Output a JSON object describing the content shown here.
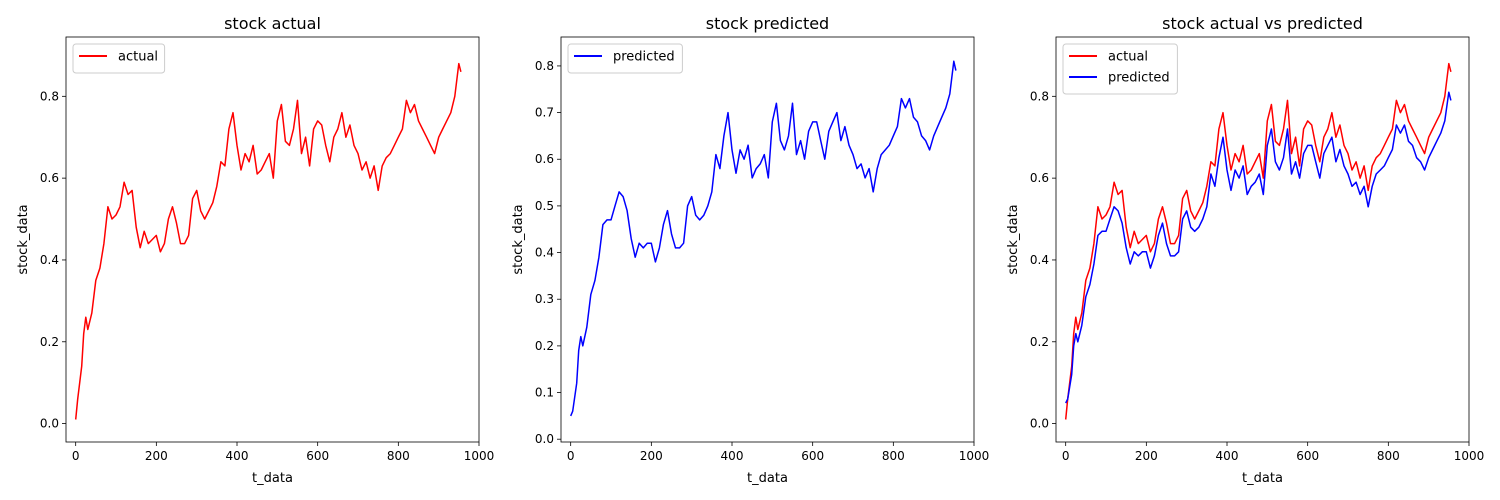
{
  "colors": {
    "actual": "#ff0000",
    "predicted": "#0000ff"
  },
  "chart_data": [
    {
      "type": "line",
      "title": "stock actual",
      "xlabel": "t_data",
      "ylabel": "stock_data",
      "xlim": [
        -24,
        1000
      ],
      "ylim": [
        -0.045,
        0.945
      ],
      "xticks": [
        0,
        200,
        400,
        600,
        800,
        1000
      ],
      "xtick_labels": [
        "0",
        "200",
        "400",
        "600",
        "800",
        "1000"
      ],
      "yticks": [
        0.0,
        0.2,
        0.4,
        0.6,
        0.8
      ],
      "ytick_labels": [
        "0.0",
        "0.2",
        "0.4",
        "0.6",
        "0.8"
      ],
      "grid": false,
      "legend": "upper-left",
      "series": [
        {
          "name": "actual",
          "color": "red",
          "x": [
            0,
            5,
            10,
            15,
            20,
            25,
            30,
            40,
            50,
            60,
            70,
            80,
            90,
            100,
            110,
            120,
            130,
            140,
            150,
            160,
            170,
            180,
            190,
            200,
            210,
            220,
            230,
            240,
            250,
            260,
            270,
            280,
            290,
            300,
            310,
            320,
            330,
            340,
            350,
            360,
            370,
            380,
            390,
            400,
            410,
            420,
            430,
            440,
            450,
            460,
            470,
            480,
            490,
            500,
            510,
            520,
            530,
            540,
            550,
            560,
            570,
            580,
            590,
            600,
            610,
            620,
            630,
            640,
            650,
            660,
            670,
            680,
            690,
            700,
            710,
            720,
            730,
            740,
            750,
            760,
            770,
            780,
            790,
            800,
            810,
            820,
            830,
            840,
            850,
            860,
            870,
            880,
            890,
            900,
            910,
            920,
            930,
            940,
            950,
            955
          ],
          "y": [
            0.01,
            0.06,
            0.1,
            0.14,
            0.22,
            0.26,
            0.23,
            0.27,
            0.35,
            0.38,
            0.44,
            0.53,
            0.5,
            0.51,
            0.53,
            0.59,
            0.56,
            0.57,
            0.48,
            0.43,
            0.47,
            0.44,
            0.45,
            0.46,
            0.42,
            0.44,
            0.5,
            0.53,
            0.49,
            0.44,
            0.44,
            0.46,
            0.55,
            0.57,
            0.52,
            0.5,
            0.52,
            0.54,
            0.58,
            0.64,
            0.63,
            0.72,
            0.76,
            0.68,
            0.62,
            0.66,
            0.64,
            0.68,
            0.61,
            0.62,
            0.64,
            0.66,
            0.6,
            0.74,
            0.78,
            0.69,
            0.68,
            0.72,
            0.79,
            0.66,
            0.7,
            0.63,
            0.72,
            0.74,
            0.73,
            0.68,
            0.64,
            0.7,
            0.72,
            0.76,
            0.7,
            0.73,
            0.68,
            0.66,
            0.62,
            0.64,
            0.6,
            0.63,
            0.57,
            0.63,
            0.65,
            0.66,
            0.68,
            0.7,
            0.72,
            0.79,
            0.76,
            0.78,
            0.74,
            0.72,
            0.7,
            0.68,
            0.66,
            0.7,
            0.72,
            0.74,
            0.76,
            0.8,
            0.88,
            0.86
          ]
        }
      ]
    },
    {
      "type": "line",
      "title": "stock predicted",
      "xlabel": "t_data",
      "ylabel": "stock_data",
      "xlim": [
        -24,
        1000
      ],
      "ylim": [
        -0.006,
        0.862
      ],
      "xticks": [
        0,
        200,
        400,
        600,
        800,
        1000
      ],
      "xtick_labels": [
        "0",
        "200",
        "400",
        "600",
        "800",
        "1000"
      ],
      "yticks": [
        0.0,
        0.1,
        0.2,
        0.3,
        0.4,
        0.5,
        0.6,
        0.7,
        0.8
      ],
      "ytick_labels": [
        "0.0",
        "0.1",
        "0.2",
        "0.3",
        "0.4",
        "0.5",
        "0.6",
        "0.7",
        "0.8"
      ],
      "grid": false,
      "legend": "upper-left",
      "series": [
        {
          "name": "predicted",
          "color": "blue",
          "x": [
            0,
            5,
            10,
            15,
            20,
            25,
            30,
            40,
            50,
            60,
            70,
            80,
            90,
            100,
            110,
            120,
            130,
            140,
            150,
            160,
            170,
            180,
            190,
            200,
            210,
            220,
            230,
            240,
            250,
            260,
            270,
            280,
            290,
            300,
            310,
            320,
            330,
            340,
            350,
            360,
            370,
            380,
            390,
            400,
            410,
            420,
            430,
            440,
            450,
            460,
            470,
            480,
            490,
            500,
            510,
            520,
            530,
            540,
            550,
            560,
            570,
            580,
            590,
            600,
            610,
            620,
            630,
            640,
            650,
            660,
            670,
            680,
            690,
            700,
            710,
            720,
            730,
            740,
            750,
            760,
            770,
            780,
            790,
            800,
            810,
            820,
            830,
            840,
            850,
            860,
            870,
            880,
            890,
            900,
            910,
            920,
            930,
            940,
            950,
            955
          ],
          "y": [
            0.05,
            0.06,
            0.09,
            0.12,
            0.19,
            0.22,
            0.2,
            0.24,
            0.31,
            0.34,
            0.39,
            0.46,
            0.47,
            0.47,
            0.5,
            0.53,
            0.52,
            0.49,
            0.43,
            0.39,
            0.42,
            0.41,
            0.42,
            0.42,
            0.38,
            0.41,
            0.46,
            0.49,
            0.44,
            0.41,
            0.41,
            0.42,
            0.5,
            0.52,
            0.48,
            0.47,
            0.48,
            0.5,
            0.53,
            0.61,
            0.58,
            0.65,
            0.7,
            0.62,
            0.57,
            0.62,
            0.6,
            0.63,
            0.56,
            0.58,
            0.59,
            0.61,
            0.56,
            0.68,
            0.72,
            0.64,
            0.62,
            0.65,
            0.72,
            0.61,
            0.64,
            0.6,
            0.66,
            0.68,
            0.68,
            0.64,
            0.6,
            0.66,
            0.68,
            0.7,
            0.64,
            0.67,
            0.63,
            0.61,
            0.58,
            0.59,
            0.56,
            0.58,
            0.53,
            0.58,
            0.61,
            0.62,
            0.63,
            0.65,
            0.67,
            0.73,
            0.71,
            0.73,
            0.69,
            0.68,
            0.65,
            0.64,
            0.62,
            0.65,
            0.67,
            0.69,
            0.71,
            0.74,
            0.81,
            0.79
          ]
        }
      ]
    },
    {
      "type": "line",
      "title": "stock actual vs predicted",
      "xlabel": "t_data",
      "ylabel": "stock_data",
      "xlim": [
        -24,
        1000
      ],
      "ylim": [
        -0.045,
        0.945
      ],
      "xticks": [
        0,
        200,
        400,
        600,
        800,
        1000
      ],
      "xtick_labels": [
        "0",
        "200",
        "400",
        "600",
        "800",
        "1000"
      ],
      "yticks": [
        0.0,
        0.2,
        0.4,
        0.6,
        0.8
      ],
      "ytick_labels": [
        "0.0",
        "0.2",
        "0.4",
        "0.6",
        "0.8"
      ],
      "grid": false,
      "legend": "upper-left",
      "series": [
        {
          "name": "actual",
          "color": "red",
          "x": [
            0,
            5,
            10,
            15,
            20,
            25,
            30,
            40,
            50,
            60,
            70,
            80,
            90,
            100,
            110,
            120,
            130,
            140,
            150,
            160,
            170,
            180,
            190,
            200,
            210,
            220,
            230,
            240,
            250,
            260,
            270,
            280,
            290,
            300,
            310,
            320,
            330,
            340,
            350,
            360,
            370,
            380,
            390,
            400,
            410,
            420,
            430,
            440,
            450,
            460,
            470,
            480,
            490,
            500,
            510,
            520,
            530,
            540,
            550,
            560,
            570,
            580,
            590,
            600,
            610,
            620,
            630,
            640,
            650,
            660,
            670,
            680,
            690,
            700,
            710,
            720,
            730,
            740,
            750,
            760,
            770,
            780,
            790,
            800,
            810,
            820,
            830,
            840,
            850,
            860,
            870,
            880,
            890,
            900,
            910,
            920,
            930,
            940,
            950,
            955
          ],
          "y": [
            0.01,
            0.06,
            0.1,
            0.14,
            0.22,
            0.26,
            0.23,
            0.27,
            0.35,
            0.38,
            0.44,
            0.53,
            0.5,
            0.51,
            0.53,
            0.59,
            0.56,
            0.57,
            0.48,
            0.43,
            0.47,
            0.44,
            0.45,
            0.46,
            0.42,
            0.44,
            0.5,
            0.53,
            0.49,
            0.44,
            0.44,
            0.46,
            0.55,
            0.57,
            0.52,
            0.5,
            0.52,
            0.54,
            0.58,
            0.64,
            0.63,
            0.72,
            0.76,
            0.68,
            0.62,
            0.66,
            0.64,
            0.68,
            0.61,
            0.62,
            0.64,
            0.66,
            0.6,
            0.74,
            0.78,
            0.69,
            0.68,
            0.72,
            0.79,
            0.66,
            0.7,
            0.63,
            0.72,
            0.74,
            0.73,
            0.68,
            0.64,
            0.7,
            0.72,
            0.76,
            0.7,
            0.73,
            0.68,
            0.66,
            0.62,
            0.64,
            0.6,
            0.63,
            0.57,
            0.63,
            0.65,
            0.66,
            0.68,
            0.7,
            0.72,
            0.79,
            0.76,
            0.78,
            0.74,
            0.72,
            0.7,
            0.68,
            0.66,
            0.7,
            0.72,
            0.74,
            0.76,
            0.8,
            0.88,
            0.86
          ]
        },
        {
          "name": "predicted",
          "color": "blue",
          "x": [
            0,
            5,
            10,
            15,
            20,
            25,
            30,
            40,
            50,
            60,
            70,
            80,
            90,
            100,
            110,
            120,
            130,
            140,
            150,
            160,
            170,
            180,
            190,
            200,
            210,
            220,
            230,
            240,
            250,
            260,
            270,
            280,
            290,
            300,
            310,
            320,
            330,
            340,
            350,
            360,
            370,
            380,
            390,
            400,
            410,
            420,
            430,
            440,
            450,
            460,
            470,
            480,
            490,
            500,
            510,
            520,
            530,
            540,
            550,
            560,
            570,
            580,
            590,
            600,
            610,
            620,
            630,
            640,
            650,
            660,
            670,
            680,
            690,
            700,
            710,
            720,
            730,
            740,
            750,
            760,
            770,
            780,
            790,
            800,
            810,
            820,
            830,
            840,
            850,
            860,
            870,
            880,
            890,
            900,
            910,
            920,
            930,
            940,
            950,
            955
          ],
          "y": [
            0.05,
            0.06,
            0.09,
            0.12,
            0.19,
            0.22,
            0.2,
            0.24,
            0.31,
            0.34,
            0.39,
            0.46,
            0.47,
            0.47,
            0.5,
            0.53,
            0.52,
            0.49,
            0.43,
            0.39,
            0.42,
            0.41,
            0.42,
            0.42,
            0.38,
            0.41,
            0.46,
            0.49,
            0.44,
            0.41,
            0.41,
            0.42,
            0.5,
            0.52,
            0.48,
            0.47,
            0.48,
            0.5,
            0.53,
            0.61,
            0.58,
            0.65,
            0.7,
            0.62,
            0.57,
            0.62,
            0.6,
            0.63,
            0.56,
            0.58,
            0.59,
            0.61,
            0.56,
            0.68,
            0.72,
            0.64,
            0.62,
            0.65,
            0.72,
            0.61,
            0.64,
            0.6,
            0.66,
            0.68,
            0.68,
            0.64,
            0.6,
            0.66,
            0.68,
            0.7,
            0.64,
            0.67,
            0.63,
            0.61,
            0.58,
            0.59,
            0.56,
            0.58,
            0.53,
            0.58,
            0.61,
            0.62,
            0.63,
            0.65,
            0.67,
            0.73,
            0.71,
            0.73,
            0.69,
            0.68,
            0.65,
            0.64,
            0.62,
            0.65,
            0.67,
            0.69,
            0.71,
            0.74,
            0.81,
            0.79
          ]
        }
      ]
    }
  ]
}
